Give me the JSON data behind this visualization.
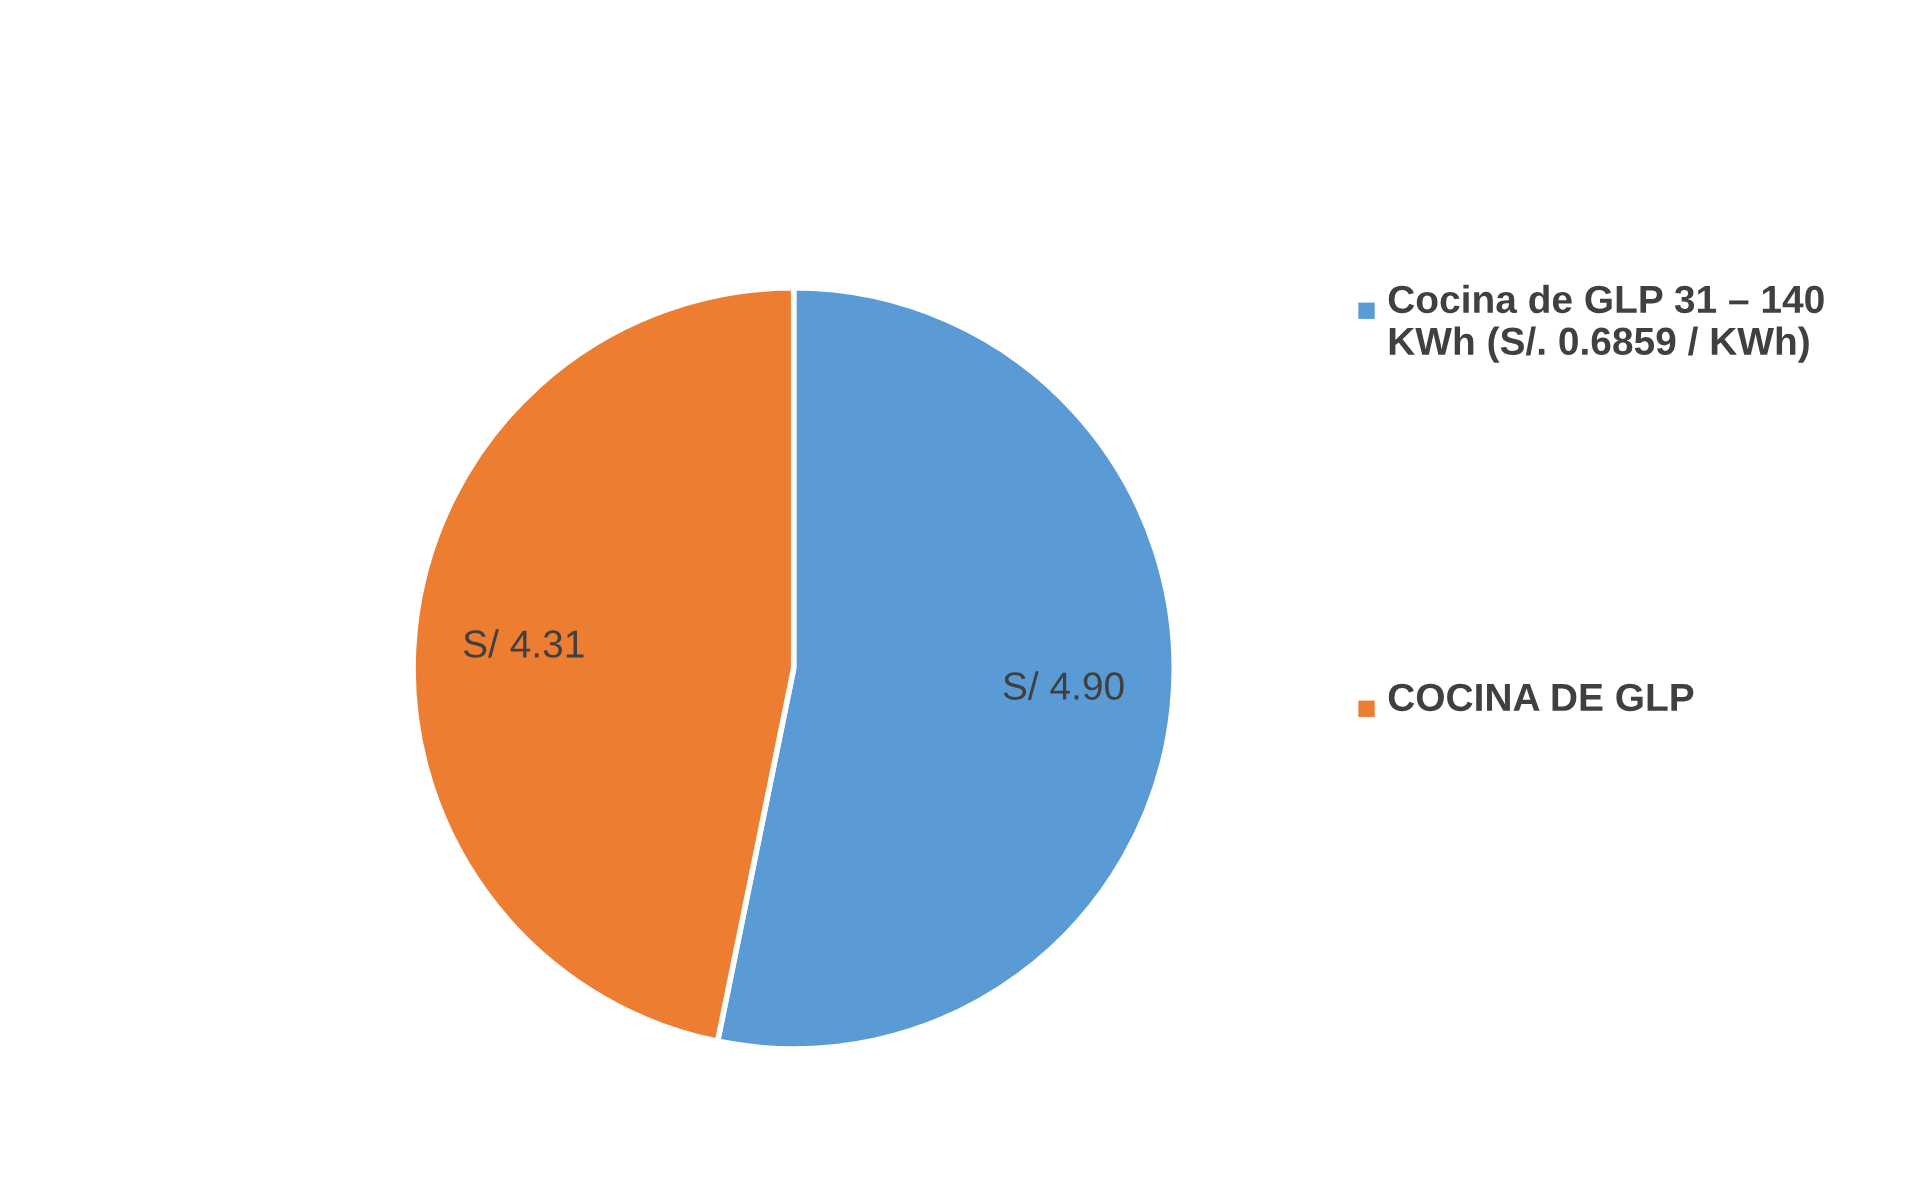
{
  "chart_data": {
    "type": "pie",
    "categories": [
      "Cocina de GLP 31 – 140 KWh (S/. 0.6859 / KWh)",
      "COCINA DE GLP"
    ],
    "values": [
      4.9,
      4.31
    ],
    "colors": [
      "#5b9bd5",
      "#ed7d31"
    ],
    "value_labels": [
      "S/ 4.90",
      "S/ 4.31"
    ],
    "legend": "right"
  }
}
